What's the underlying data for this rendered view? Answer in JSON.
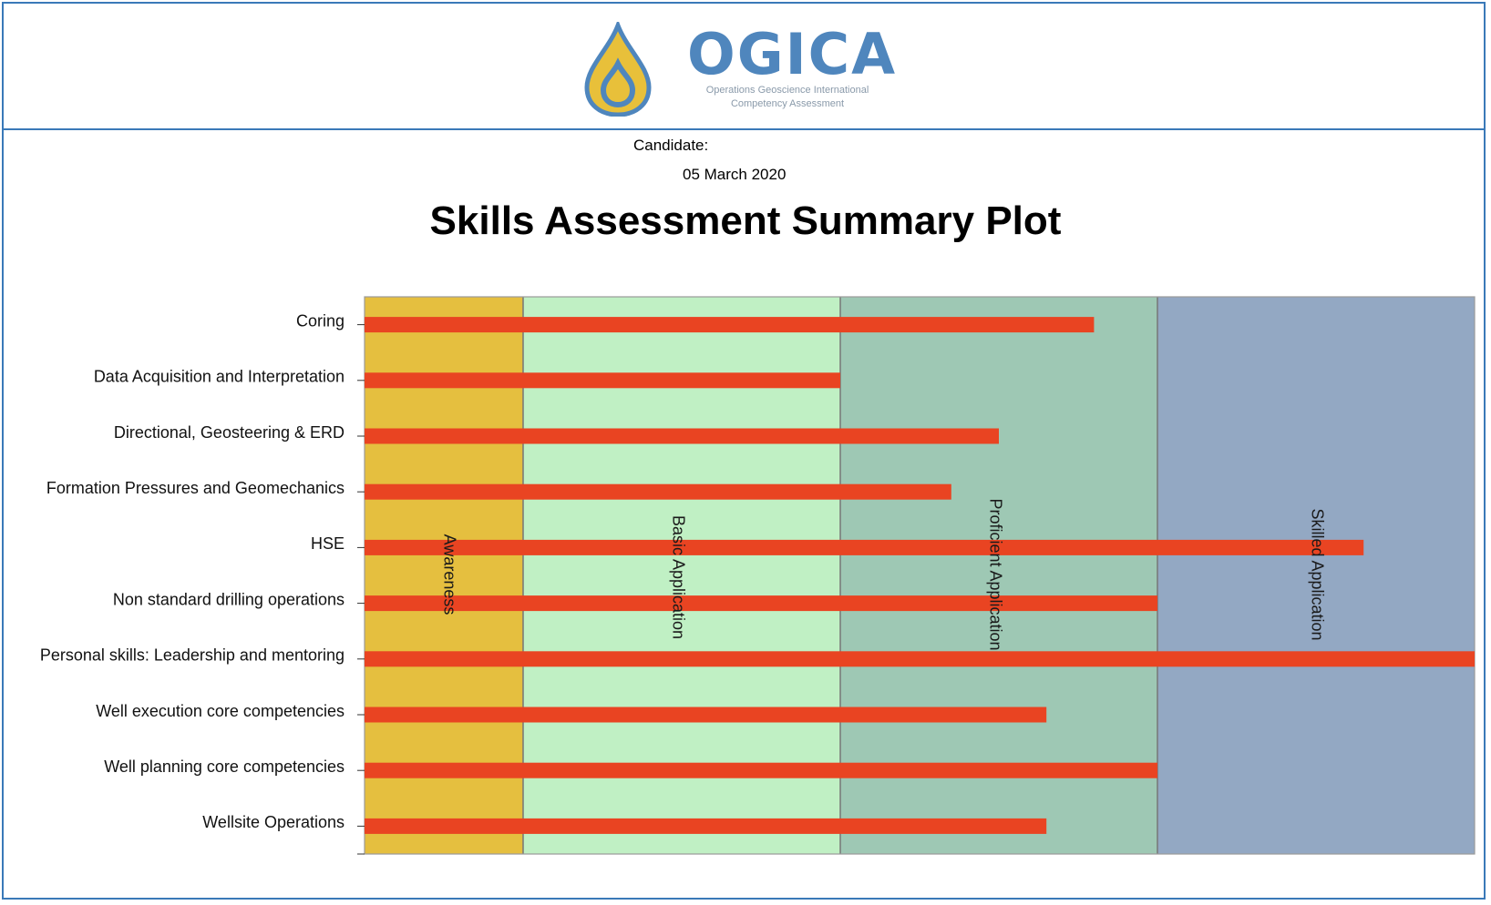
{
  "brand": {
    "name": "OGICA",
    "tagline_line1": "Operations Geoscience International",
    "tagline_line2": "Competency Assessment",
    "colors": {
      "drop_gold": "#e8c03a",
      "drop_blue": "#4f86bd"
    }
  },
  "candidate_label": "Candidate:",
  "date": "05 March 2020",
  "chart_data": {
    "type": "bar",
    "orientation": "horizontal",
    "title": "Skills Assessment Summary Plot",
    "categories": [
      "Coring",
      "Data Acquisition and Interpretation",
      "Directional, Geosteering & ERD",
      "Formation Pressures and Geomechanics",
      "HSE",
      "Non standard drilling operations",
      "Personal skills: Leadership and mentoring",
      "Well execution core competencies",
      "Well planning core competencies",
      "Wellsite Operations"
    ],
    "values": [
      2.3,
      1.5,
      2.0,
      1.85,
      3.15,
      2.5,
      3.5,
      2.15,
      2.5,
      2.15
    ],
    "xlim": [
      0,
      3.5
    ],
    "bar_color": "#e94422",
    "bands": [
      {
        "label": "Awareness",
        "from": 0,
        "to": 0.5,
        "color": "#e5bf3f"
      },
      {
        "label": "Basic Application",
        "from": 0.5,
        "to": 1.5,
        "color": "#c0f0c4"
      },
      {
        "label": "Proficient Application",
        "from": 1.5,
        "to": 2.5,
        "color": "#9ec8b4"
      },
      {
        "label": "Skilled Application",
        "from": 2.5,
        "to": 3.5,
        "color": "#93a8c3"
      }
    ],
    "grid": false,
    "legend": "none"
  }
}
